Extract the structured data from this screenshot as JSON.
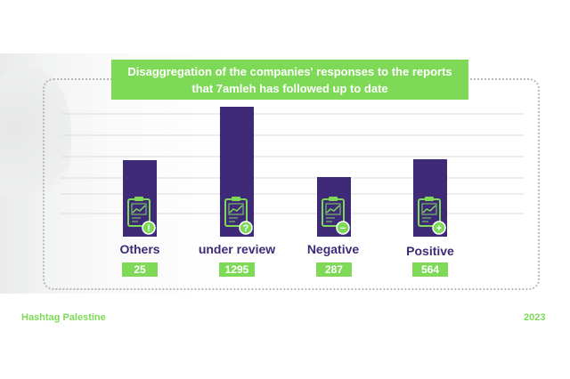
{
  "title_lines": [
    "Disaggregation of the companies' responses to the reports",
    "that 7amleh has followed up to date"
  ],
  "footer": {
    "left": "Hashtag Palestine",
    "right": "2023"
  },
  "colors": {
    "bar": "#3f2a78",
    "accent": "#7ed957",
    "icon_green": "#7ed957",
    "grid": "#dddddd"
  },
  "icons": [
    "alert-icon",
    "question-icon",
    "minus-icon",
    "plus-icon"
  ],
  "chart_data": {
    "type": "bar",
    "categories": [
      "Others",
      "under review",
      "Negative",
      "Positive"
    ],
    "values": [
      25,
      1295,
      287,
      564
    ],
    "value_labels": [
      "25",
      "1295",
      "287",
      "564"
    ],
    "grid": true,
    "legend": "none"
  }
}
